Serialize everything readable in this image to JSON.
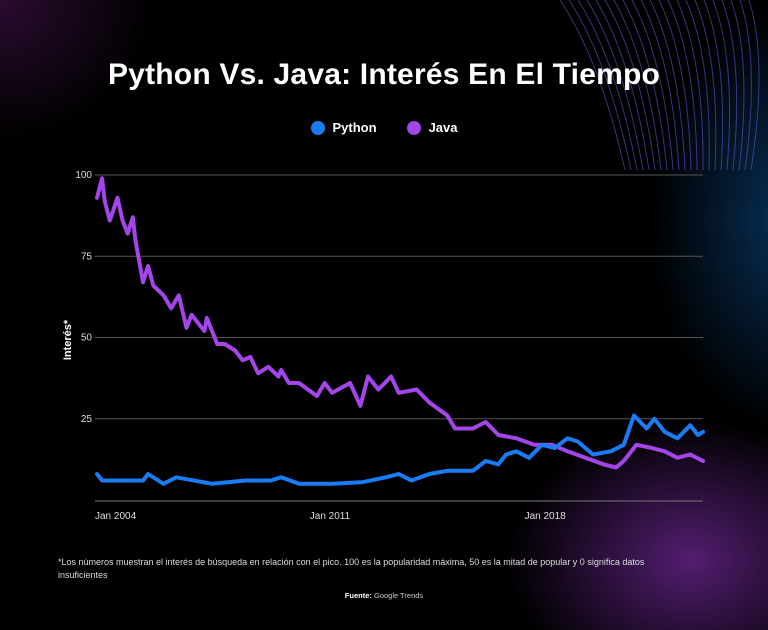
{
  "title": "Python Vs. Java: Interés En El Tiempo",
  "legend": [
    {
      "name": "Python",
      "color": "#1a7cf5"
    },
    {
      "name": "Java",
      "color": "#a445ea"
    }
  ],
  "footnote": "*Los números muestran el interés de búsqueda en relación con el pico. 100 es la popularidad máxima, 50 es la mitad de popular y 0 significa datos insuficientes",
  "source_label": "Fuente:",
  "source_value": "Google Trends",
  "chart_data": {
    "type": "line",
    "title": "Python Vs. Java: Interés En El Tiempo",
    "xlabel": "",
    "ylabel": "Interés*",
    "ylim": [
      0,
      100
    ],
    "yticks": [
      "25",
      "50",
      "75",
      "100"
    ],
    "xticks": [
      "Jan 2004",
      "Jan 2011",
      "Jan 2018"
    ],
    "xrange": [
      "2004-01",
      "2023-10"
    ],
    "grid": "horizontal",
    "legend_position": "top",
    "series": [
      {
        "name": "Python",
        "color": "#1a7cf5",
        "points": [
          [
            "2004-01",
            8
          ],
          [
            "2004-03",
            6
          ],
          [
            "2004-07",
            6
          ],
          [
            "2005-07",
            6
          ],
          [
            "2005-09",
            8
          ],
          [
            "2006-03",
            5
          ],
          [
            "2006-08",
            7
          ],
          [
            "2007-10",
            5
          ],
          [
            "2008-11",
            6
          ],
          [
            "2009-09",
            6
          ],
          [
            "2010-01",
            7
          ],
          [
            "2010-08",
            5
          ],
          [
            "2011-09",
            5
          ],
          [
            "2012-09",
            5.5
          ],
          [
            "2013-06",
            7
          ],
          [
            "2013-11",
            8
          ],
          [
            "2014-04",
            6
          ],
          [
            "2014-11",
            8
          ],
          [
            "2015-06",
            9
          ],
          [
            "2016-04",
            9
          ],
          [
            "2016-09",
            12
          ],
          [
            "2017-02",
            11
          ],
          [
            "2017-05",
            14
          ],
          [
            "2017-09",
            15
          ],
          [
            "2018-02",
            13
          ],
          [
            "2018-07",
            17
          ],
          [
            "2018-12",
            16
          ],
          [
            "2019-05",
            19
          ],
          [
            "2019-09",
            18
          ],
          [
            "2020-03",
            14
          ],
          [
            "2020-10",
            15
          ],
          [
            "2021-03",
            17
          ],
          [
            "2021-07",
            26
          ],
          [
            "2021-12",
            22
          ],
          [
            "2022-03",
            25
          ],
          [
            "2022-07",
            21
          ],
          [
            "2022-12",
            19
          ],
          [
            "2023-05",
            23
          ],
          [
            "2023-08",
            20
          ],
          [
            "2023-10",
            21
          ]
        ]
      },
      {
        "name": "Java",
        "color": "#a445ea",
        "points": [
          [
            "2004-01",
            93
          ],
          [
            "2004-03",
            99
          ],
          [
            "2004-04",
            92
          ],
          [
            "2004-06",
            86
          ],
          [
            "2004-09",
            93
          ],
          [
            "2004-11",
            86
          ],
          [
            "2005-01",
            82
          ],
          [
            "2005-03",
            87
          ],
          [
            "2005-04",
            80
          ],
          [
            "2005-07",
            67
          ],
          [
            "2005-09",
            72
          ],
          [
            "2005-11",
            66
          ],
          [
            "2006-03",
            63
          ],
          [
            "2006-06",
            59
          ],
          [
            "2006-09",
            63
          ],
          [
            "2006-12",
            53
          ],
          [
            "2007-02",
            57
          ],
          [
            "2007-07",
            52
          ],
          [
            "2007-08",
            56
          ],
          [
            "2007-12",
            48
          ],
          [
            "2008-03",
            48
          ],
          [
            "2008-07",
            46
          ],
          [
            "2008-10",
            43
          ],
          [
            "2009-01",
            44
          ],
          [
            "2009-04",
            39
          ],
          [
            "2009-08",
            41
          ],
          [
            "2009-12",
            38
          ],
          [
            "2010-01",
            40
          ],
          [
            "2010-04",
            36
          ],
          [
            "2010-08",
            36
          ],
          [
            "2011-03",
            32
          ],
          [
            "2011-06",
            36
          ],
          [
            "2011-09",
            33
          ],
          [
            "2012-04",
            36
          ],
          [
            "2012-08",
            29
          ],
          [
            "2012-11",
            38
          ],
          [
            "2013-03",
            34
          ],
          [
            "2013-08",
            38
          ],
          [
            "2013-11",
            33
          ],
          [
            "2014-06",
            34
          ],
          [
            "2014-11",
            30
          ],
          [
            "2015-06",
            26
          ],
          [
            "2015-09",
            22
          ],
          [
            "2016-04",
            22
          ],
          [
            "2016-09",
            24
          ],
          [
            "2017-02",
            20
          ],
          [
            "2017-09",
            19
          ],
          [
            "2018-04",
            17
          ],
          [
            "2018-11",
            17
          ],
          [
            "2019-05",
            15
          ],
          [
            "2019-12",
            13
          ],
          [
            "2020-07",
            11
          ],
          [
            "2020-12",
            10
          ],
          [
            "2021-03",
            12
          ],
          [
            "2021-08",
            17
          ],
          [
            "2022-02",
            16
          ],
          [
            "2022-07",
            15
          ],
          [
            "2022-12",
            13
          ],
          [
            "2023-05",
            14
          ],
          [
            "2023-10",
            12
          ]
        ]
      }
    ]
  }
}
